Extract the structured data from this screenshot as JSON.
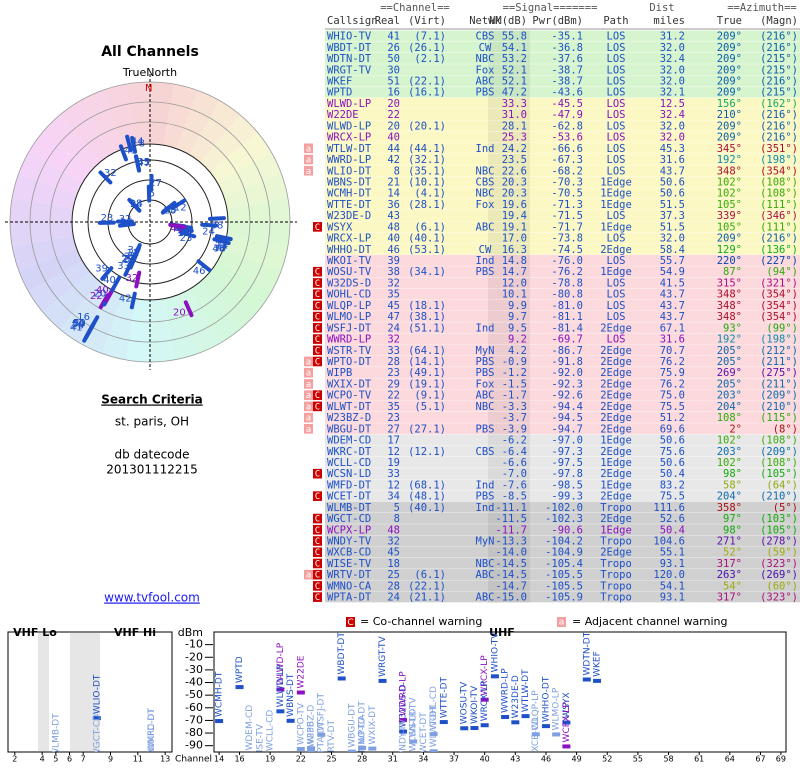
{
  "left": {
    "title": "All Channels",
    "north": "TrueNorth",
    "n": "N",
    "criteria": "Search Criteria",
    "location": "st. paris, OH",
    "datecode_label": "db datecode",
    "datecode": "201301112215",
    "link": "www.tvfool.com"
  },
  "table": {
    "group_channel": "==Channel==",
    "group_signal": "==Signal=======",
    "group_azimuth": "==Azimuth==",
    "dist_top": "Dist",
    "headers": {
      "callsign": "Callsign",
      "real": "Real",
      "virt": "(Virt)",
      "netwk": "Netwk",
      "nm": "NM(dB)",
      "pwr": "Pwr(dBm)",
      "path": "Path",
      "dist": "miles",
      "az": "True",
      "magn": "(Magn)"
    },
    "rows": [
      {
        "callsign": "WHIO-TV",
        "real": "41",
        "virt": "(7.1)",
        "netwk": "CBS",
        "nm": "55.8",
        "pwr": "-35.1",
        "path": "LOS",
        "dist": "31.2",
        "az": "209°",
        "magn": "(216°)"
      },
      {
        "callsign": "WBDT-DT",
        "real": "26",
        "virt": "(26.1)",
        "netwk": "CW",
        "nm": "54.1",
        "pwr": "-36.8",
        "path": "LOS",
        "dist": "32.0",
        "az": "209°",
        "magn": "(216°)"
      },
      {
        "callsign": "WDTN-DT",
        "real": "50",
        "virt": "(2.1)",
        "netwk": "NBC",
        "nm": "53.2",
        "pwr": "-37.6",
        "path": "LOS",
        "dist": "32.4",
        "az": "209°",
        "magn": "(215°)"
      },
      {
        "callsign": "WRGT-TV",
        "real": "30",
        "netwk": "Fox",
        "nm": "52.1",
        "pwr": "-38.7",
        "path": "LOS",
        "dist": "32.0",
        "az": "209°",
        "magn": "(215°)"
      },
      {
        "callsign": "WKEF",
        "real": "51",
        "virt": "(22.1)",
        "netwk": "ABC",
        "nm": "52.1",
        "pwr": "-38.7",
        "path": "LOS",
        "dist": "32.0",
        "az": "209°",
        "magn": "(216°)"
      },
      {
        "callsign": "WPTD",
        "real": "16",
        "virt": "(16.1)",
        "netwk": "PBS",
        "nm": "47.2",
        "pwr": "-43.6",
        "path": "LOS",
        "dist": "32.1",
        "az": "209°",
        "magn": "(215°)"
      },
      {
        "callsign": "WLWD-LP",
        "real": "20",
        "nm": "33.3",
        "pwr": "-45.5",
        "path": "LOS",
        "dist": "12.5",
        "az": "156°",
        "magn": "(162°)",
        "color": "#8a10c0"
      },
      {
        "callsign": "W22DE",
        "real": "22",
        "nm": "31.0",
        "pwr": "-47.9",
        "path": "LOS",
        "dist": "32.4",
        "az": "210°",
        "magn": "(216°)",
        "color": "#8a10c0"
      },
      {
        "callsign": "WLWD-LP",
        "real": "20",
        "virt": "(20.1)",
        "nm": "28.1",
        "pwr": "-62.8",
        "path": "LOS",
        "dist": "32.0",
        "az": "209°",
        "magn": "(216°)"
      },
      {
        "callsign": "WRCX-LP",
        "real": "40",
        "nm": "25.3",
        "pwr": "-53.6",
        "path": "LOS",
        "dist": "32.0",
        "az": "209°",
        "magn": "(216°)",
        "color": "#8a10c0"
      },
      {
        "callsign": "WTLW-DT",
        "real": "44",
        "virt": "(44.1)",
        "netwk": "Ind",
        "nm": "24.2",
        "pwr": "-66.6",
        "path": "LOS",
        "dist": "45.3",
        "az": "345°",
        "magn": "(351°)",
        "flags": [
          "a"
        ]
      },
      {
        "callsign": "WWRD-LP",
        "real": "42",
        "virt": "(32.1)",
        "nm": "23.5",
        "pwr": "-67.3",
        "path": "LOS",
        "dist": "31.6",
        "az": "192°",
        "magn": "(198°)",
        "flags": [
          "a"
        ]
      },
      {
        "callsign": "WLIO-DT",
        "real": "8",
        "virt": "(35.1)",
        "netwk": "NBC",
        "nm": "22.6",
        "pwr": "-68.2",
        "path": "LOS",
        "dist": "43.7",
        "az": "348°",
        "magn": "(354°)",
        "flags": [
          "a"
        ]
      },
      {
        "callsign": "WBNS-DT",
        "real": "21",
        "virt": "(10.1)",
        "netwk": "CBS",
        "nm": "20.3",
        "pwr": "-70.3",
        "path": "1Edge",
        "dist": "50.6",
        "az": "102°",
        "magn": "(108°)"
      },
      {
        "callsign": "WCMH-DT",
        "real": "14",
        "virt": "(4.1)",
        "netwk": "NBC",
        "nm": "20.3",
        "pwr": "-70.5",
        "path": "1Edge",
        "dist": "50.6",
        "az": "102°",
        "magn": "(108°)"
      },
      {
        "callsign": "WTTE-DT",
        "real": "36",
        "virt": "(28.1)",
        "netwk": "Fox",
        "nm": "19.6",
        "pwr": "-71.3",
        "path": "1Edge",
        "dist": "51.5",
        "az": "105°",
        "magn": "(111°)"
      },
      {
        "callsign": "W23DE-D",
        "real": "43",
        "nm": "19.4",
        "pwr": "-71.5",
        "path": "LOS",
        "dist": "37.3",
        "az": "339°",
        "magn": "(346°)"
      },
      {
        "callsign": "WSYX",
        "real": "48",
        "virt": "(6.1)",
        "netwk": "ABC",
        "nm": "19.1",
        "pwr": "-71.7",
        "path": "1Edge",
        "dist": "51.5",
        "az": "105°",
        "magn": "(111°)",
        "flags": [
          "C"
        ]
      },
      {
        "callsign": "WRCX-LP",
        "real": "40",
        "virt": "(40.1)",
        "nm": "17.0",
        "pwr": "-73.8",
        "path": "LOS",
        "dist": "32.0",
        "az": "209°",
        "magn": "(216°)"
      },
      {
        "callsign": "WHHO-DT",
        "real": "46",
        "virt": "(53.1)",
        "netwk": "CW",
        "nm": "16.3",
        "pwr": "-74.5",
        "path": "2Edge",
        "dist": "58.4",
        "az": "129°",
        "magn": "(136°)"
      },
      {
        "callsign": "WKOI-TV",
        "real": "39",
        "netwk": "Ind",
        "nm": "14.8",
        "pwr": "-76.0",
        "path": "LOS",
        "dist": "55.7",
        "az": "220°",
        "magn": "(227°)"
      },
      {
        "callsign": "WOSU-TV",
        "real": "38",
        "virt": "(34.1)",
        "netwk": "PBS",
        "nm": "14.7",
        "pwr": "-76.2",
        "path": "1Edge",
        "dist": "54.9",
        "az": "87°",
        "magn": "(94°)",
        "flags": [
          "C"
        ]
      },
      {
        "callsign": "W32DS-D",
        "real": "32",
        "nm": "12.0",
        "pwr": "-78.8",
        "path": "LOS",
        "dist": "41.5",
        "az": "315°",
        "magn": "(321°)",
        "flags": [
          "C"
        ]
      },
      {
        "callsign": "WOHL-CD",
        "real": "35",
        "nm": "10.1",
        "pwr": "-80.8",
        "path": "LOS",
        "dist": "43.7",
        "az": "348°",
        "magn": "(354°)",
        "flags": [
          "C"
        ]
      },
      {
        "callsign": "WLQP-LP",
        "real": "45",
        "virt": "(18.1)",
        "nm": "9.9",
        "pwr": "-81.0",
        "path": "LOS",
        "dist": "43.7",
        "az": "348°",
        "magn": "(354°)",
        "flags": [
          "C"
        ]
      },
      {
        "callsign": "WLMO-LP",
        "real": "47",
        "virt": "(38.1)",
        "nm": "9.7",
        "pwr": "-81.1",
        "path": "LOS",
        "dist": "43.7",
        "az": "348°",
        "magn": "(354°)",
        "flags": [
          "C"
        ]
      },
      {
        "callsign": "WSFJ-DT",
        "real": "24",
        "virt": "(51.1)",
        "netwk": "Ind",
        "nm": "9.5",
        "pwr": "-81.4",
        "path": "2Edge",
        "dist": "67.1",
        "az": "93°",
        "magn": "(99°)",
        "flags": [
          "C"
        ]
      },
      {
        "callsign": "WWRD-LP",
        "real": "32",
        "nm": "9.2",
        "pwr": "-69.7",
        "path": "LOS",
        "dist": "31.6",
        "az": "192°",
        "magn": "(198°)",
        "flags": [
          "C"
        ],
        "color": "#8a10c0"
      },
      {
        "callsign": "WSTR-TV",
        "real": "33",
        "virt": "(64.1)",
        "netwk": "MyN",
        "nm": "4.2",
        "pwr": "-86.7",
        "path": "2Edge",
        "dist": "70.7",
        "az": "205°",
        "magn": "(212°)",
        "flags": [
          "C"
        ]
      },
      {
        "callsign": "WPTO-DT",
        "real": "28",
        "virt": "(14.1)",
        "netwk": "PBS",
        "nm": "-0.9",
        "pwr": "-91.8",
        "path": "2Edge",
        "dist": "76.2",
        "az": "205°",
        "magn": "(211°)",
        "flags": [
          "a",
          "C"
        ]
      },
      {
        "callsign": "WIPB",
        "real": "23",
        "virt": "(49.1)",
        "netwk": "PBS",
        "nm": "-1.2",
        "pwr": "-92.0",
        "path": "2Edge",
        "dist": "75.9",
        "az": "269°",
        "magn": "(275°)",
        "flags": [
          "a"
        ]
      },
      {
        "callsign": "WXIX-DT",
        "real": "29",
        "virt": "(19.1)",
        "netwk": "Fox",
        "nm": "-1.5",
        "pwr": "-92.3",
        "path": "2Edge",
        "dist": "76.2",
        "az": "205°",
        "magn": "(211°)",
        "flags": [
          "a"
        ]
      },
      {
        "callsign": "WCPO-TV",
        "real": "22",
        "virt": "(9.1)",
        "netwk": "ABC",
        "nm": "-1.7",
        "pwr": "-92.6",
        "path": "2Edge",
        "dist": "75.0",
        "az": "203°",
        "magn": "(209°)",
        "flags": [
          "a",
          "C"
        ]
      },
      {
        "callsign": "WLWT-DT",
        "real": "35",
        "virt": "(5.1)",
        "netwk": "NBC",
        "nm": "-3.3",
        "pwr": "-94.4",
        "path": "2Edge",
        "dist": "75.5",
        "az": "204°",
        "magn": "(210°)",
        "flags": [
          "a",
          "C"
        ]
      },
      {
        "callsign": "W23BZ-D",
        "real": "23",
        "nm": "-3.7",
        "pwr": "-94.5",
        "path": "2Edge",
        "dist": "51.2",
        "az": "108°",
        "magn": "(115°)",
        "flags": [
          "a"
        ]
      },
      {
        "callsign": "WBGU-DT",
        "real": "27",
        "virt": "(27.1)",
        "netwk": "PBS",
        "nm": "-3.9",
        "pwr": "-94.7",
        "path": "2Edge",
        "dist": "69.6",
        "az": "2°",
        "magn": "(8°)",
        "flags": [
          "a"
        ]
      },
      {
        "callsign": "WDEM-CD",
        "real": "17",
        "nm": "-6.2",
        "pwr": "-97.0",
        "path": "1Edge",
        "dist": "50.6",
        "az": "102°",
        "magn": "(108°)"
      },
      {
        "callsign": "WKRC-DT",
        "real": "12",
        "virt": "(12.1)",
        "netwk": "CBS",
        "nm": "-6.4",
        "pwr": "-97.3",
        "path": "2Edge",
        "dist": "75.6",
        "az": "203°",
        "magn": "(209°)"
      },
      {
        "callsign": "WCLL-CD",
        "real": "19",
        "nm": "-6.6",
        "pwr": "-97.5",
        "path": "1Edge",
        "dist": "50.6",
        "az": "102°",
        "magn": "(108°)"
      },
      {
        "callsign": "WCSN-LD",
        "real": "33",
        "nm": "-7.0",
        "pwr": "-97.8",
        "path": "2Edge",
        "dist": "50.4",
        "az": "98°",
        "magn": "(105°)",
        "flags": [
          "C"
        ]
      },
      {
        "callsign": "WMFD-DT",
        "real": "12",
        "virt": "(68.1)",
        "netwk": "Ind",
        "nm": "-7.6",
        "pwr": "-98.5",
        "path": "1Edge",
        "dist": "83.2",
        "az": "58°",
        "magn": "(64°)"
      },
      {
        "callsign": "WCET-DT",
        "real": "34",
        "virt": "(48.1)",
        "netwk": "PBS",
        "nm": "-8.5",
        "pwr": "-99.3",
        "path": "2Edge",
        "dist": "75.5",
        "az": "204°",
        "magn": "(210°)",
        "flags": [
          "C"
        ]
      },
      {
        "callsign": "WLMB-DT",
        "real": "5",
        "virt": "(40.1)",
        "netwk": "Ind",
        "nm": "-11.1",
        "pwr": "-102.0",
        "path": "Tropo",
        "dist": "111.6",
        "az": "358°",
        "magn": "(5°)"
      },
      {
        "callsign": "WGCT-CD",
        "real": "8",
        "nm": "-11.5",
        "pwr": "-102.3",
        "path": "2Edge",
        "dist": "52.6",
        "az": "97°",
        "magn": "(103°)",
        "flags": [
          "C"
        ]
      },
      {
        "callsign": "WCPX-LP",
        "real": "48",
        "nm": "-11.7",
        "pwr": "-90.6",
        "path": "1Edge",
        "dist": "50.4",
        "az": "98°",
        "magn": "(105°)",
        "flags": [
          "C"
        ],
        "color": "#8a10c0"
      },
      {
        "callsign": "WNDY-TV",
        "real": "32",
        "netwk": "MyN",
        "nm": "-13.3",
        "pwr": "-104.2",
        "path": "Tropo",
        "dist": "104.6",
        "az": "271°",
        "magn": "(278°)",
        "flags": [
          "C"
        ]
      },
      {
        "callsign": "WXCB-CD",
        "real": "45",
        "nm": "-14.0",
        "pwr": "-104.9",
        "path": "2Edge",
        "dist": "55.1",
        "az": "52°",
        "magn": "(59°)",
        "flags": [
          "C"
        ]
      },
      {
        "callsign": "WISE-TV",
        "real": "18",
        "netwk": "NBC",
        "nm": "-14.5",
        "pwr": "-105.4",
        "path": "Tropo",
        "dist": "93.1",
        "az": "317°",
        "magn": "(323°)",
        "flags": [
          "C"
        ]
      },
      {
        "callsign": "WRTV-DT",
        "real": "25",
        "virt": "(6.1)",
        "netwk": "ABC",
        "nm": "-14.5",
        "pwr": "-105.5",
        "path": "Tropo",
        "dist": "120.0",
        "az": "263°",
        "magn": "(269°)",
        "flags": [
          "a",
          "C"
        ]
      },
      {
        "callsign": "WMNO-CA",
        "real": "28",
        "virt": "(22.1)",
        "nm": "-14.7",
        "pwr": "-105.5",
        "path": "Tropo",
        "dist": "54.1",
        "az": "54°",
        "magn": "(60°)",
        "flags": [
          "C"
        ]
      },
      {
        "callsign": "WPTA-DT",
        "real": "24",
        "virt": "(21.1)",
        "netwk": "ABC",
        "nm": "-15.0",
        "pwr": "-105.9",
        "path": "Tropo",
        "dist": "93.1",
        "az": "317°",
        "magn": "(323°)",
        "flags": [
          "C"
        ]
      }
    ]
  },
  "legend": {
    "co_flag": "C",
    "co_text": "= Co-channel warning",
    "adj_flag": "a",
    "adj_text": "= Adjacent channel warning"
  },
  "spectrum": {
    "vhf_lo": "VHF Lo",
    "vhf_hi": "VHF Hi",
    "uhf": "UHF",
    "unit": "dBm",
    "channel_label": "Channel",
    "ylim": [
      0,
      -95
    ],
    "yticks": [
      -10,
      -20,
      -30,
      -40,
      -50,
      -60,
      -70,
      -80,
      -90
    ],
    "vhf_xlim": [
      1.5,
      13.5
    ],
    "vhf_xticks": [
      2,
      4,
      5,
      6,
      7,
      9,
      11,
      13
    ],
    "uhf_xlim": [
      13.5,
      69.5
    ],
    "uhf_xticks": [
      14,
      16,
      19,
      22,
      25,
      28,
      31,
      34,
      37,
      40,
      43,
      46,
      49,
      52,
      55,
      58,
      61,
      64,
      67,
      69
    ]
  }
}
